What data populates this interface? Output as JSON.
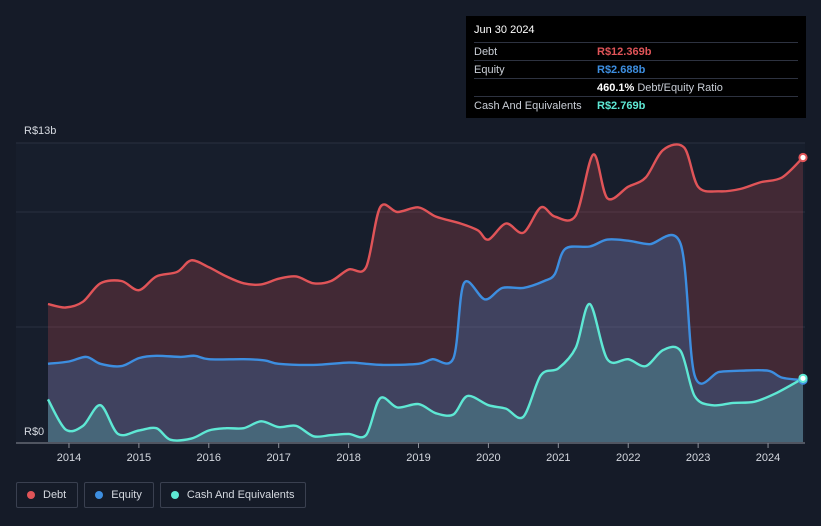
{
  "tooltip": {
    "date": "Jun 30 2024",
    "rows": {
      "debt": {
        "label": "Debt",
        "value": "R$12.369b"
      },
      "equity": {
        "label": "Equity",
        "value": "R$2.688b"
      },
      "ratio": {
        "value": "460.1%",
        "label": "Debt/Equity Ratio"
      },
      "cash": {
        "label": "Cash And Equivalents",
        "value": "R$2.769b"
      }
    }
  },
  "colors": {
    "debt": "#e05458",
    "equity": "#3d8ee0",
    "cash": "#5ee8d4",
    "background": "#151b28"
  },
  "legend": [
    {
      "key": "debt",
      "label": "Debt"
    },
    {
      "key": "equity",
      "label": "Equity"
    },
    {
      "key": "cash",
      "label": "Cash And Equivalents"
    }
  ],
  "chart_data": {
    "type": "area",
    "y_unit": "R$ billions",
    "y_top_label": "R$13b",
    "y_bottom_label": "R$0",
    "ylim": [
      0,
      13
    ],
    "xlim": [
      2013.7,
      2024.5
    ],
    "x_ticks": [
      "2014",
      "2015",
      "2016",
      "2017",
      "2018",
      "2019",
      "2020",
      "2021",
      "2022",
      "2023",
      "2024"
    ],
    "series": [
      {
        "name": "Debt",
        "points": [
          [
            2013.7,
            6.0
          ],
          [
            2013.95,
            5.85
          ],
          [
            2014.2,
            6.1
          ],
          [
            2014.45,
            6.9
          ],
          [
            2014.75,
            7.0
          ],
          [
            2015.0,
            6.6
          ],
          [
            2015.25,
            7.2
          ],
          [
            2015.55,
            7.4
          ],
          [
            2015.75,
            7.9
          ],
          [
            2016.0,
            7.6
          ],
          [
            2016.25,
            7.2
          ],
          [
            2016.5,
            6.9
          ],
          [
            2016.75,
            6.85
          ],
          [
            2017.0,
            7.1
          ],
          [
            2017.25,
            7.2
          ],
          [
            2017.5,
            6.9
          ],
          [
            2017.75,
            7.0
          ],
          [
            2018.0,
            7.5
          ],
          [
            2018.25,
            7.6
          ],
          [
            2018.45,
            10.2
          ],
          [
            2018.7,
            10.0
          ],
          [
            2019.0,
            10.2
          ],
          [
            2019.25,
            9.8
          ],
          [
            2019.6,
            9.5
          ],
          [
            2019.85,
            9.2
          ],
          [
            2020.0,
            8.8
          ],
          [
            2020.25,
            9.5
          ],
          [
            2020.5,
            9.1
          ],
          [
            2020.75,
            10.2
          ],
          [
            2020.95,
            9.8
          ],
          [
            2021.25,
            9.85
          ],
          [
            2021.5,
            12.5
          ],
          [
            2021.7,
            10.6
          ],
          [
            2022.0,
            11.1
          ],
          [
            2022.25,
            11.5
          ],
          [
            2022.5,
            12.7
          ],
          [
            2022.8,
            12.8
          ],
          [
            2023.0,
            11.1
          ],
          [
            2023.3,
            10.9
          ],
          [
            2023.6,
            11.0
          ],
          [
            2023.9,
            11.3
          ],
          [
            2024.2,
            11.5
          ],
          [
            2024.5,
            12.369
          ]
        ]
      },
      {
        "name": "Equity",
        "points": [
          [
            2013.7,
            3.4
          ],
          [
            2014.0,
            3.5
          ],
          [
            2014.25,
            3.7
          ],
          [
            2014.45,
            3.4
          ],
          [
            2014.75,
            3.3
          ],
          [
            2015.0,
            3.65
          ],
          [
            2015.25,
            3.75
          ],
          [
            2015.6,
            3.7
          ],
          [
            2015.8,
            3.75
          ],
          [
            2016.0,
            3.6
          ],
          [
            2016.5,
            3.6
          ],
          [
            2016.8,
            3.55
          ],
          [
            2017.0,
            3.4
          ],
          [
            2017.5,
            3.35
          ],
          [
            2018.0,
            3.45
          ],
          [
            2018.25,
            3.4
          ],
          [
            2018.5,
            3.35
          ],
          [
            2019.0,
            3.4
          ],
          [
            2019.2,
            3.6
          ],
          [
            2019.5,
            3.65
          ],
          [
            2019.65,
            6.9
          ],
          [
            2019.95,
            6.2
          ],
          [
            2020.2,
            6.7
          ],
          [
            2020.5,
            6.7
          ],
          [
            2020.8,
            7.0
          ],
          [
            2020.95,
            7.3
          ],
          [
            2021.1,
            8.4
          ],
          [
            2021.45,
            8.5
          ],
          [
            2021.7,
            8.8
          ],
          [
            2022.0,
            8.75
          ],
          [
            2022.3,
            8.6
          ],
          [
            2022.75,
            8.6
          ],
          [
            2022.95,
            2.9
          ],
          [
            2023.3,
            3.05
          ],
          [
            2023.6,
            3.1
          ],
          [
            2024.0,
            3.1
          ],
          [
            2024.2,
            2.8
          ],
          [
            2024.5,
            2.688
          ]
        ]
      },
      {
        "name": "Cash And Equivalents",
        "points": [
          [
            2013.7,
            1.85
          ],
          [
            2013.95,
            0.55
          ],
          [
            2014.2,
            0.7
          ],
          [
            2014.45,
            1.6
          ],
          [
            2014.7,
            0.35
          ],
          [
            2015.0,
            0.5
          ],
          [
            2015.25,
            0.6
          ],
          [
            2015.45,
            0.1
          ],
          [
            2015.75,
            0.15
          ],
          [
            2016.0,
            0.5
          ],
          [
            2016.25,
            0.6
          ],
          [
            2016.5,
            0.6
          ],
          [
            2016.75,
            0.9
          ],
          [
            2017.0,
            0.65
          ],
          [
            2017.25,
            0.7
          ],
          [
            2017.5,
            0.25
          ],
          [
            2017.75,
            0.3
          ],
          [
            2018.0,
            0.35
          ],
          [
            2018.25,
            0.3
          ],
          [
            2018.45,
            1.9
          ],
          [
            2018.7,
            1.5
          ],
          [
            2019.0,
            1.65
          ],
          [
            2019.25,
            1.25
          ],
          [
            2019.5,
            1.2
          ],
          [
            2019.7,
            2.0
          ],
          [
            2020.0,
            1.6
          ],
          [
            2020.25,
            1.45
          ],
          [
            2020.5,
            1.1
          ],
          [
            2020.75,
            2.9
          ],
          [
            2021.0,
            3.2
          ],
          [
            2021.25,
            4.1
          ],
          [
            2021.45,
            6.0
          ],
          [
            2021.7,
            3.6
          ],
          [
            2022.0,
            3.6
          ],
          [
            2022.25,
            3.3
          ],
          [
            2022.5,
            4.0
          ],
          [
            2022.75,
            3.95
          ],
          [
            2022.95,
            2.0
          ],
          [
            2023.2,
            1.6
          ],
          [
            2023.5,
            1.7
          ],
          [
            2023.8,
            1.75
          ],
          [
            2024.1,
            2.1
          ],
          [
            2024.5,
            2.769
          ]
        ]
      }
    ],
    "legend_placement": "bottom-left",
    "grid": true
  }
}
